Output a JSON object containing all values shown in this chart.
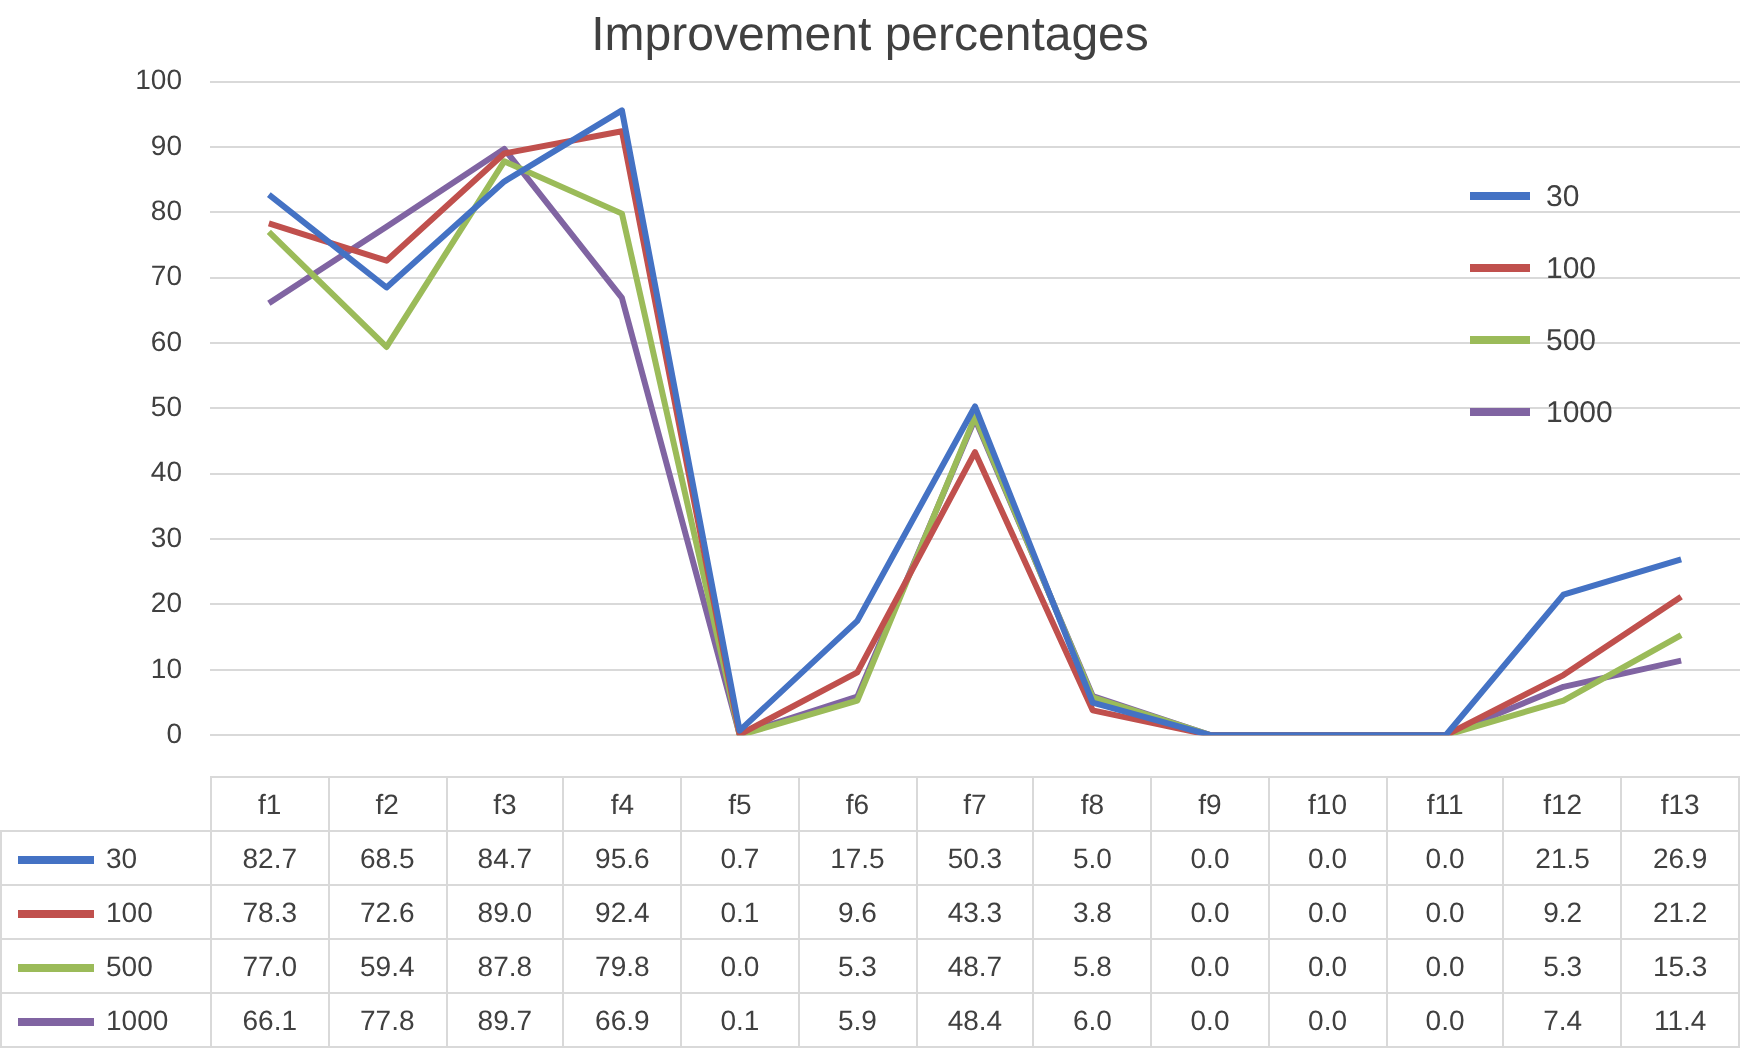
{
  "chart_data": {
    "type": "line",
    "title": "Improvement percentages",
    "categories": [
      "f1",
      "f2",
      "f3",
      "f4",
      "f5",
      "f6",
      "f7",
      "f8",
      "f9",
      "f10",
      "f11",
      "f12",
      "f13"
    ],
    "series": [
      {
        "name": "30",
        "color": "#4472c4",
        "values": [
          82.7,
          68.5,
          84.7,
          95.6,
          0.7,
          17.5,
          50.3,
          5.0,
          0.0,
          0.0,
          0.0,
          21.5,
          26.9
        ],
        "value_labels": [
          "82.7",
          "68.5",
          "84.7",
          "95.6",
          "0.7",
          "17.5",
          "50.3",
          "5.0",
          "0.0",
          "0.0",
          "0.0",
          "21.5",
          "26.9"
        ]
      },
      {
        "name": "100",
        "color": "#c0504d",
        "values": [
          78.3,
          72.6,
          89.0,
          92.4,
          0.1,
          9.6,
          43.3,
          3.8,
          0.0,
          0.0,
          0.0,
          9.2,
          21.2
        ],
        "value_labels": [
          "78.3",
          "72.6",
          "89.0",
          "92.4",
          "0.1",
          "9.6",
          "43.3",
          "3.8",
          "0.0",
          "0.0",
          "0.0",
          "9.2",
          "21.2"
        ]
      },
      {
        "name": "500",
        "color": "#9bbb59",
        "values": [
          77.0,
          59.4,
          87.8,
          79.8,
          0.0,
          5.3,
          48.7,
          5.8,
          0.0,
          0.0,
          0.0,
          5.3,
          15.3
        ],
        "value_labels": [
          "77.0",
          "59.4",
          "87.8",
          "79.8",
          "0.0",
          "5.3",
          "48.7",
          "5.8",
          "0.0",
          "0.0",
          "0.0",
          "5.3",
          "15.3"
        ]
      },
      {
        "name": "1000",
        "color": "#8064a2",
        "values": [
          66.1,
          77.8,
          89.7,
          66.9,
          0.1,
          5.9,
          48.4,
          6.0,
          0.0,
          0.0,
          0.0,
          7.4,
          11.4
        ],
        "value_labels": [
          "66.1",
          "77.8",
          "89.7",
          "66.9",
          "0.1",
          "5.9",
          "48.4",
          "6.0",
          "0.0",
          "0.0",
          "0.0",
          "7.4",
          "11.4"
        ]
      }
    ],
    "ylim": [
      0,
      100
    ],
    "yticks": [
      0,
      10,
      20,
      30,
      40,
      50,
      60,
      70,
      80,
      90,
      100
    ],
    "grid": "y",
    "legend": "top right",
    "marker": "none",
    "line_style": "solid"
  }
}
